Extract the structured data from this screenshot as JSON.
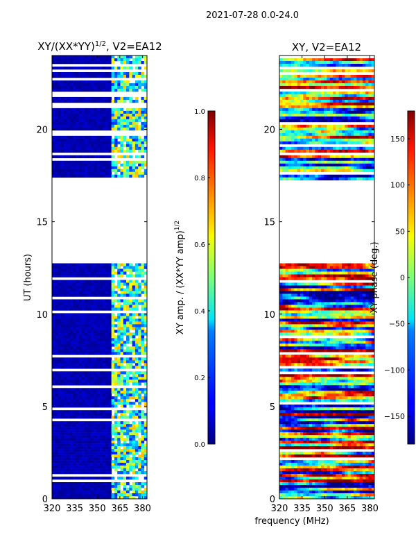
{
  "suptitle": "2021-07-28 0.0-24.0",
  "xlabel": "frequency (MHz)",
  "chart_data": [
    {
      "type": "heatmap",
      "title": "XY/(XX*YY)",
      "title_sup": "1/2",
      "title_suffix": ", V2=EA12",
      "ylabel": "UT (hours)",
      "xlim": [
        320,
        383
      ],
      "ylim": [
        0,
        24
      ],
      "xticks": [
        320,
        335,
        350,
        365,
        380
      ],
      "yticks": [
        0,
        5,
        10,
        15,
        20
      ],
      "data_gaps_hours": [
        [
          12.8,
          17.3
        ]
      ],
      "high_amp_band_mhz": [
        360,
        383
      ]
    },
    {
      "type": "heatmap",
      "title": "XY, V2=EA12",
      "xlim": [
        320,
        383
      ],
      "ylim": [
        0,
        24
      ],
      "xticks": [
        320,
        335,
        350,
        365,
        380
      ],
      "yticks": [
        0,
        5,
        10,
        15,
        20
      ],
      "data_gaps_hours": [
        [
          12.8,
          17.3
        ]
      ]
    }
  ],
  "colorbars": [
    {
      "label": "XY amp. / (XX*YY amp)",
      "label_sup": "1/2",
      "range": [
        0.0,
        1.0
      ],
      "ticks": [
        "0.0",
        "0.2",
        "0.4",
        "0.6",
        "0.8",
        "1.0"
      ]
    },
    {
      "label": "XY phase (deg.)",
      "range": [
        -180,
        180
      ],
      "ticks": [
        "-150",
        "-100",
        "-50",
        "0",
        "50",
        "100",
        "150"
      ]
    }
  ]
}
